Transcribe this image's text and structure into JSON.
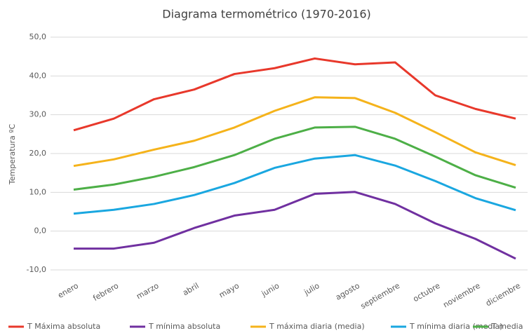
{
  "chart_data": {
    "type": "line",
    "title": "Diagrama termométrico (1970-2016)",
    "y_label": "Temperatura ºC",
    "categories": [
      "enero",
      "febrero",
      "marzo",
      "abril",
      "mayo",
      "junio",
      "julio",
      "agosto",
      "septiembre",
      "octubre",
      "noviembre",
      "diciembre"
    ],
    "series": [
      {
        "name": "T Máxima absoluta",
        "color": "#e8382b",
        "values": [
          26,
          29,
          34,
          36.5,
          40.5,
          42,
          44.5,
          43,
          43.5,
          35,
          31.5,
          29
        ]
      },
      {
        "name": "T mínima absoluta",
        "color": "#7030a0",
        "values": [
          -4.5,
          -4.5,
          -3,
          0.8,
          4,
          5.5,
          9.6,
          10.1,
          7,
          2,
          -2,
          -7.1
        ]
      },
      {
        "name": "T máxima diaria (media)",
        "color": "#f5b31b",
        "values": [
          16.8,
          18.5,
          21,
          23.3,
          26.7,
          31,
          34.5,
          34.3,
          30.5,
          25.5,
          20.3,
          17
        ]
      },
      {
        "name": "T mínima diaria (media)",
        "color": "#1aa7e0",
        "values": [
          4.5,
          5.5,
          7,
          9.3,
          12.4,
          16.3,
          18.7,
          19.6,
          16.9,
          12.9,
          8.5,
          5.4
        ]
      },
      {
        "name": "T media",
        "color": "#4daf47",
        "values": [
          10.7,
          12,
          14,
          16.5,
          19.6,
          23.8,
          26.7,
          26.9,
          23.8,
          19.2,
          14.4,
          11.2
        ]
      }
    ],
    "ylim": [
      -10,
      50
    ],
    "yticks": [
      {
        "value": -10,
        "label": "-10,0"
      },
      {
        "value": 0,
        "label": "0,0"
      },
      {
        "value": 10,
        "label": "10,0"
      },
      {
        "value": 20,
        "label": "20,0"
      },
      {
        "value": 30,
        "label": "30,0"
      },
      {
        "value": 40,
        "label": "40,0"
      },
      {
        "value": 50,
        "label": "50,0"
      }
    ],
    "grid": true,
    "legend": "bottom"
  }
}
